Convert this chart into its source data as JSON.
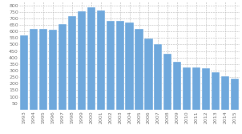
{
  "years": [
    "1993",
    "1994",
    "1995",
    "1996",
    "1997",
    "1998",
    "1999",
    "2000",
    "2001",
    "2002",
    "2003",
    "2004",
    "2005",
    "2006",
    "2007",
    "2008",
    "2009",
    "2010",
    "2011",
    "2012",
    "2013",
    "2014",
    "2015"
  ],
  "values": [
    570,
    620,
    618,
    616,
    657,
    720,
    755,
    785,
    762,
    681,
    680,
    668,
    620,
    543,
    503,
    428,
    370,
    327,
    327,
    316,
    291,
    257,
    241
  ],
  "bar_color": "#6fa8dc",
  "background_color": "#ffffff",
  "ylim": [
    0,
    830
  ],
  "yticks": [
    50,
    100,
    150,
    200,
    250,
    300,
    350,
    400,
    450,
    500,
    550,
    600,
    650,
    700,
    750,
    800
  ],
  "grid_color": "#bbbbbb",
  "tick_fontsize": 4.5,
  "bar_width": 0.85
}
